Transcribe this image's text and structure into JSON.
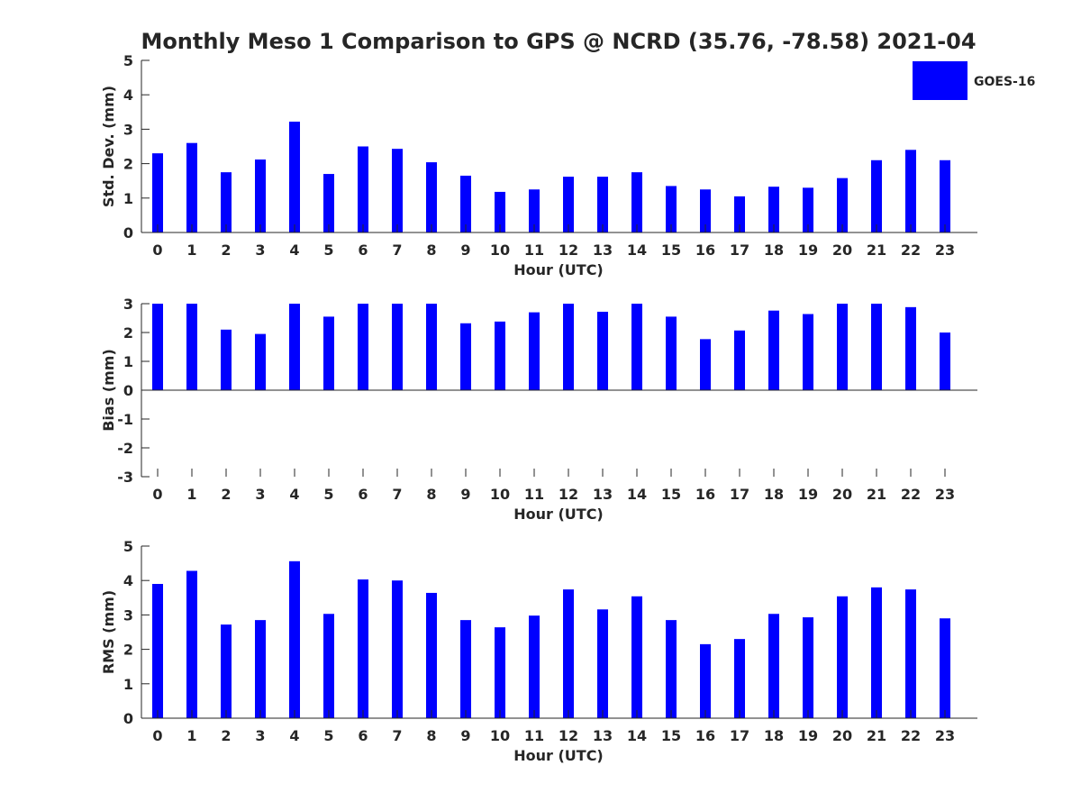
{
  "title": "Monthly Meso 1 Comparison to GPS @ NCRD (35.76, -78.58) 2021-04",
  "colors": {
    "bar": "#0000ff",
    "axis": "#262626",
    "title": "#000000"
  },
  "legend": {
    "label": "GOES-16",
    "placement": "top-right"
  },
  "chart_data": [
    {
      "type": "bar",
      "xlabel": "Hour (UTC)",
      "ylabel": "Std. Dev. (mm)",
      "ylim": [
        0,
        5
      ],
      "yticks": [
        "0",
        "1",
        "2",
        "3",
        "4",
        "5"
      ],
      "categories": [
        "0",
        "1",
        "2",
        "3",
        "4",
        "5",
        "6",
        "7",
        "8",
        "9",
        "10",
        "11",
        "12",
        "13",
        "14",
        "15",
        "16",
        "17",
        "18",
        "19",
        "20",
        "21",
        "22",
        "23"
      ],
      "series": [
        {
          "name": "GOES-16",
          "values": [
            2.3,
            2.6,
            1.75,
            2.12,
            3.22,
            1.7,
            2.5,
            2.43,
            2.04,
            1.65,
            1.18,
            1.25,
            1.62,
            1.62,
            1.75,
            1.35,
            1.25,
            1.05,
            1.33,
            1.3,
            1.58,
            2.1,
            2.4,
            2.1
          ]
        }
      ]
    },
    {
      "type": "bar",
      "xlabel": "Hour (UTC)",
      "ylabel": "Bias (mm)",
      "ylim": [
        -3,
        3
      ],
      "yticks": [
        "-3",
        "-2",
        "-1",
        "0",
        "1",
        "2",
        "3"
      ],
      "categories": [
        "0",
        "1",
        "2",
        "3",
        "4",
        "5",
        "6",
        "7",
        "8",
        "9",
        "10",
        "11",
        "12",
        "13",
        "14",
        "15",
        "16",
        "17",
        "18",
        "19",
        "20",
        "21",
        "22",
        "23"
      ],
      "series": [
        {
          "name": "GOES-16",
          "values": [
            3.0,
            3.0,
            2.1,
            1.95,
            3.0,
            2.55,
            3.0,
            3.0,
            3.0,
            2.32,
            2.38,
            2.7,
            3.0,
            2.72,
            3.0,
            2.55,
            1.77,
            2.07,
            2.76,
            2.64,
            3.0,
            3.0,
            2.88,
            2.0
          ]
        }
      ]
    },
    {
      "type": "bar",
      "xlabel": "Hour (UTC)",
      "ylabel": "RMS (mm)",
      "ylim": [
        0,
        5
      ],
      "yticks": [
        "0",
        "1",
        "2",
        "3",
        "4",
        "5"
      ],
      "categories": [
        "0",
        "1",
        "2",
        "3",
        "4",
        "5",
        "6",
        "7",
        "8",
        "9",
        "10",
        "11",
        "12",
        "13",
        "14",
        "15",
        "16",
        "17",
        "18",
        "19",
        "20",
        "21",
        "22",
        "23"
      ],
      "series": [
        {
          "name": "GOES-16",
          "values": [
            3.9,
            4.28,
            2.72,
            2.85,
            4.56,
            3.03,
            4.03,
            4.0,
            3.64,
            2.85,
            2.64,
            2.98,
            3.74,
            3.16,
            3.54,
            2.85,
            2.15,
            2.3,
            3.03,
            2.93,
            3.54,
            3.8,
            3.74,
            2.9
          ]
        }
      ]
    }
  ]
}
